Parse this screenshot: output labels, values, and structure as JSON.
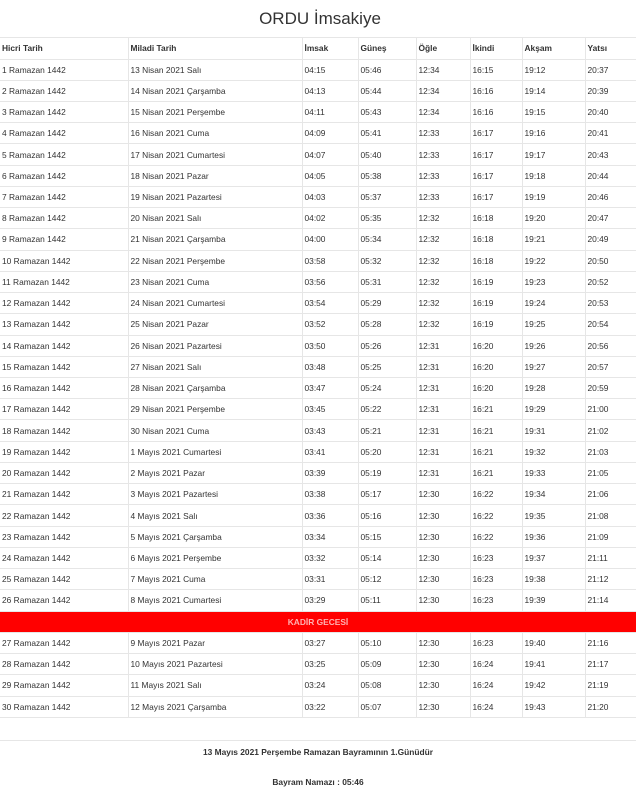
{
  "title": "ORDU İmsakiye",
  "columns": [
    "Hicri Tarih",
    "Miladi Tarih",
    "İmsak",
    "Güneş",
    "Öğle",
    "İkindi",
    "Akşam",
    "Yatsı"
  ],
  "rows": [
    [
      "1 Ramazan 1442",
      "13 Nisan 2021 Salı",
      "04:15",
      "05:46",
      "12:34",
      "16:15",
      "19:12",
      "20:37"
    ],
    [
      "2 Ramazan 1442",
      "14 Nisan 2021 Çarşamba",
      "04:13",
      "05:44",
      "12:34",
      "16:16",
      "19:14",
      "20:39"
    ],
    [
      "3 Ramazan 1442",
      "15 Nisan 2021 Perşembe",
      "04:11",
      "05:43",
      "12:34",
      "16:16",
      "19:15",
      "20:40"
    ],
    [
      "4 Ramazan 1442",
      "16 Nisan 2021 Cuma",
      "04:09",
      "05:41",
      "12:33",
      "16:17",
      "19:16",
      "20:41"
    ],
    [
      "5 Ramazan 1442",
      "17 Nisan 2021 Cumartesi",
      "04:07",
      "05:40",
      "12:33",
      "16:17",
      "19:17",
      "20:43"
    ],
    [
      "6 Ramazan 1442",
      "18 Nisan 2021 Pazar",
      "04:05",
      "05:38",
      "12:33",
      "16:17",
      "19:18",
      "20:44"
    ],
    [
      "7 Ramazan 1442",
      "19 Nisan 2021 Pazartesi",
      "04:03",
      "05:37",
      "12:33",
      "16:17",
      "19:19",
      "20:46"
    ],
    [
      "8 Ramazan 1442",
      "20 Nisan 2021 Salı",
      "04:02",
      "05:35",
      "12:32",
      "16:18",
      "19:20",
      "20:47"
    ],
    [
      "9 Ramazan 1442",
      "21 Nisan 2021 Çarşamba",
      "04:00",
      "05:34",
      "12:32",
      "16:18",
      "19:21",
      "20:49"
    ],
    [
      "10 Ramazan 1442",
      "22 Nisan 2021 Perşembe",
      "03:58",
      "05:32",
      "12:32",
      "16:18",
      "19:22",
      "20:50"
    ],
    [
      "11 Ramazan 1442",
      "23 Nisan 2021 Cuma",
      "03:56",
      "05:31",
      "12:32",
      "16:19",
      "19:23",
      "20:52"
    ],
    [
      "12 Ramazan 1442",
      "24 Nisan 2021 Cumartesi",
      "03:54",
      "05:29",
      "12:32",
      "16:19",
      "19:24",
      "20:53"
    ],
    [
      "13 Ramazan 1442",
      "25 Nisan 2021 Pazar",
      "03:52",
      "05:28",
      "12:32",
      "16:19",
      "19:25",
      "20:54"
    ],
    [
      "14 Ramazan 1442",
      "26 Nisan 2021 Pazartesi",
      "03:50",
      "05:26",
      "12:31",
      "16:20",
      "19:26",
      "20:56"
    ],
    [
      "15 Ramazan 1442",
      "27 Nisan 2021 Salı",
      "03:48",
      "05:25",
      "12:31",
      "16:20",
      "19:27",
      "20:57"
    ],
    [
      "16 Ramazan 1442",
      "28 Nisan 2021 Çarşamba",
      "03:47",
      "05:24",
      "12:31",
      "16:20",
      "19:28",
      "20:59"
    ],
    [
      "17 Ramazan 1442",
      "29 Nisan 2021 Perşembe",
      "03:45",
      "05:22",
      "12:31",
      "16:21",
      "19:29",
      "21:00"
    ],
    [
      "18 Ramazan 1442",
      "30 Nisan 2021 Cuma",
      "03:43",
      "05:21",
      "12:31",
      "16:21",
      "19:31",
      "21:02"
    ],
    [
      "19 Ramazan 1442",
      "1 Mayıs 2021 Cumartesi",
      "03:41",
      "05:20",
      "12:31",
      "16:21",
      "19:32",
      "21:03"
    ],
    [
      "20 Ramazan 1442",
      "2 Mayıs 2021 Pazar",
      "03:39",
      "05:19",
      "12:31",
      "16:21",
      "19:33",
      "21:05"
    ],
    [
      "21 Ramazan 1442",
      "3 Mayıs 2021 Pazartesi",
      "03:38",
      "05:17",
      "12:30",
      "16:22",
      "19:34",
      "21:06"
    ],
    [
      "22 Ramazan 1442",
      "4 Mayıs 2021 Salı",
      "03:36",
      "05:16",
      "12:30",
      "16:22",
      "19:35",
      "21:08"
    ],
    [
      "23 Ramazan 1442",
      "5 Mayıs 2021 Çarşamba",
      "03:34",
      "05:15",
      "12:30",
      "16:22",
      "19:36",
      "21:09"
    ],
    [
      "24 Ramazan 1442",
      "6 Mayıs 2021 Perşembe",
      "03:32",
      "05:14",
      "12:30",
      "16:23",
      "19:37",
      "21:11"
    ],
    [
      "25 Ramazan 1442",
      "7 Mayıs 2021 Cuma",
      "03:31",
      "05:12",
      "12:30",
      "16:23",
      "19:38",
      "21:12"
    ],
    [
      "26 Ramazan 1442",
      "8 Mayıs 2021 Cumartesi",
      "03:29",
      "05:11",
      "12:30",
      "16:23",
      "19:39",
      "21:14"
    ],
    {
      "special": "KADİR GECESİ"
    },
    [
      "27 Ramazan 1442",
      "9 Mayıs 2021 Pazar",
      "03:27",
      "05:10",
      "12:30",
      "16:23",
      "19:40",
      "21:16"
    ],
    [
      "28 Ramazan 1442",
      "10 Mayıs 2021 Pazartesi",
      "03:25",
      "05:09",
      "12:30",
      "16:24",
      "19:41",
      "21:17"
    ],
    [
      "29 Ramazan 1442",
      "11 Mayıs 2021 Salı",
      "03:24",
      "05:08",
      "12:30",
      "16:24",
      "19:42",
      "21:19"
    ],
    [
      "30 Ramazan 1442",
      "12 Mayıs 2021 Çarşamba",
      "03:22",
      "05:07",
      "12:30",
      "16:24",
      "19:43",
      "21:20"
    ]
  ],
  "footer": {
    "bayram_day": "13 Mayıs 2021 Perşembe Ramazan Bayramının 1.Günüdür",
    "bayram_prayer": "Bayram Namazı : 05:46"
  },
  "colors": {
    "highlight": "#ff0000"
  }
}
